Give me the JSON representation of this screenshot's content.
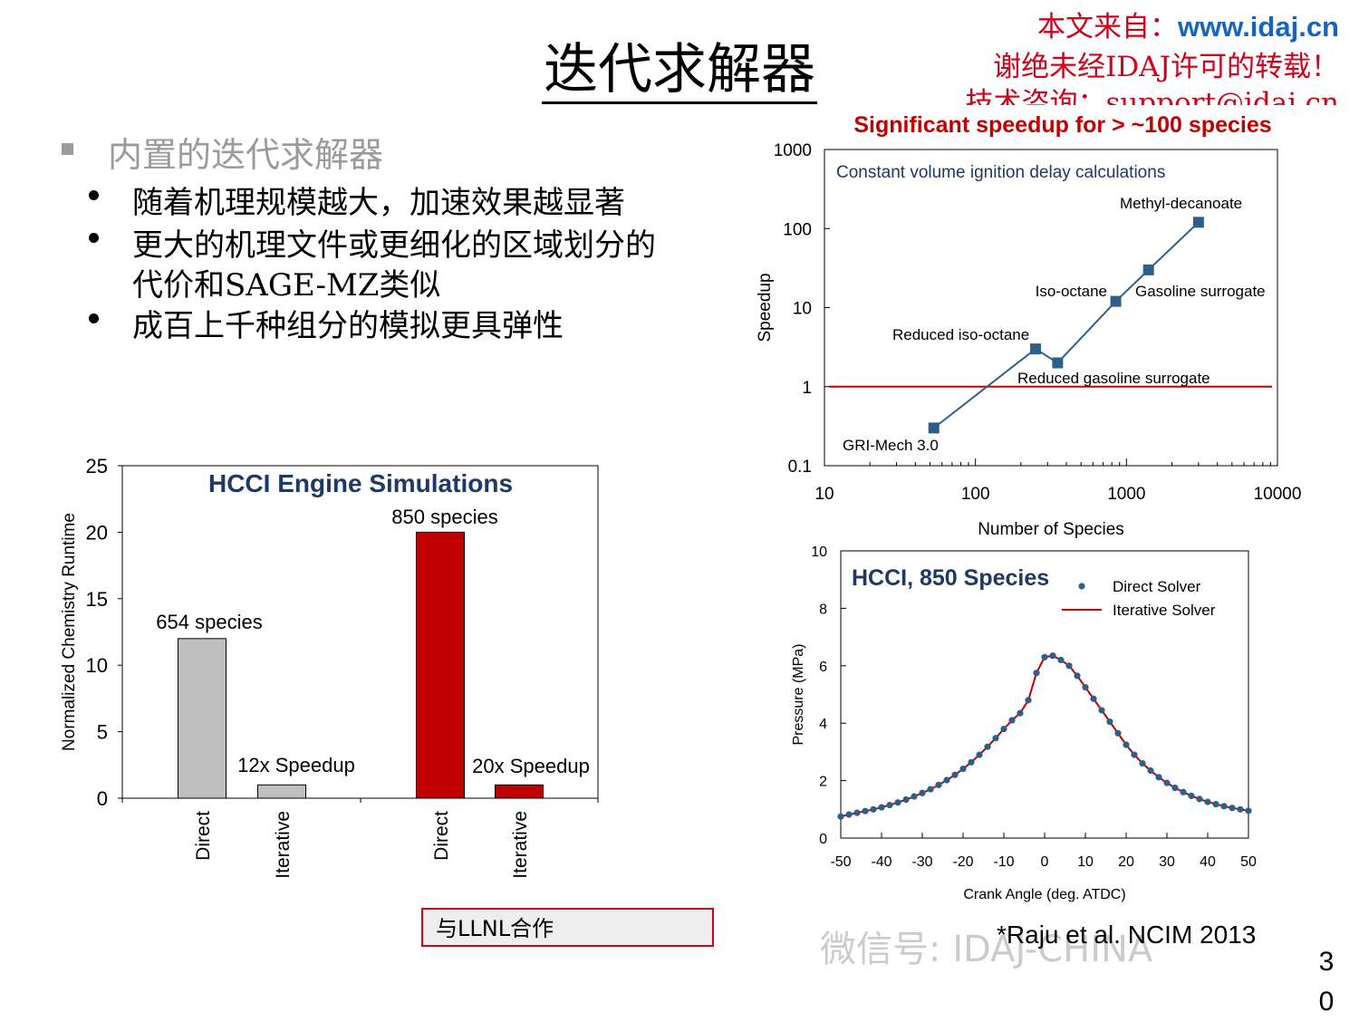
{
  "slide": {
    "title": "迭代求解器",
    "watermark": {
      "line1_cn": "本文来自：",
      "line1_url": "www.idaj.cn",
      "line2": "谢绝未经IDAJ许可的转载！",
      "line3": "技术咨询：support@idaj.cn"
    },
    "heading": "内置的迭代求解器",
    "bullets": [
      "随着机理规模越大，加速效果越显著",
      "更大的机理文件或更细化的区域划分的",
      "代价和SAGE-MZ类似",
      "成百上千种组分的模拟更具弹性"
    ],
    "llnl_box": "与LLNL合作",
    "reference": "*Raju et al. NCIM 2013",
    "wechat": "微信号: IDAJ-CHINA",
    "page_number": [
      "3",
      "0"
    ],
    "colors": {
      "red": "#c00000",
      "navy": "#1f3864",
      "gray": "#bfbfbf",
      "blue": "#2e5f8a",
      "watermark_red": "#d0021b",
      "watermark_blue": "#1565c0"
    }
  },
  "chart_data": [
    {
      "type": "bar",
      "title": "HCCI Engine Simulations",
      "ylabel": "Normalized Chemistry Runtime",
      "ylim": [
        0,
        25
      ],
      "yticks": [
        "0",
        "5",
        "10",
        "15",
        "20",
        "25"
      ],
      "categories": [
        "Direct",
        "Iterative",
        "Direct",
        "Iterative"
      ],
      "values": [
        12,
        1,
        20,
        1
      ],
      "bar_colors": [
        "#bfbfbf",
        "#bfbfbf",
        "#c00000",
        "#c00000"
      ],
      "annotations": [
        "654 species",
        "12x Speedup",
        "850 species",
        "20x Speedup"
      ]
    },
    {
      "type": "scatter",
      "title": "Significant speedup for > ~100 species",
      "subtitle": "Constant volume ignition delay calculations",
      "xlabel": "Number of Species",
      "ylabel": "Speedup",
      "xscale": "log",
      "yscale": "log",
      "xlim": [
        10,
        10000
      ],
      "ylim": [
        0.1,
        1000
      ],
      "xticks": [
        "10",
        "100",
        "1000",
        "10000"
      ],
      "yticks": [
        "0.1",
        "1",
        "10",
        "100",
        "1000"
      ],
      "points": [
        {
          "label": "GRI-Mech 3.0",
          "x": 53,
          "y": 0.3
        },
        {
          "label": "Reduced iso-octane",
          "x": 250,
          "y": 3
        },
        {
          "label": "Reduced gasoline surrogate",
          "x": 350,
          "y": 2
        },
        {
          "label": "Iso-octane",
          "x": 850,
          "y": 12
        },
        {
          "label": "Gasoline surrogate",
          "x": 1400,
          "y": 30
        },
        {
          "label": "Methyl-decanoate",
          "x": 3000,
          "y": 120
        }
      ],
      "reference_line": 1
    },
    {
      "type": "line",
      "title": "HCCI, 850 Species",
      "xlabel": "Crank Angle (deg. ATDC)",
      "ylabel": "Pressure (MPa)",
      "xlim": [
        -50,
        50
      ],
      "ylim": [
        0,
        10
      ],
      "xticks": [
        "-50",
        "-40",
        "-30",
        "-20",
        "-10",
        "0",
        "10",
        "20",
        "30",
        "40",
        "50"
      ],
      "yticks": [
        "0",
        "2",
        "4",
        "6",
        "8",
        "10"
      ],
      "series": [
        {
          "name": "Direct Solver",
          "style": "markers"
        },
        {
          "name": "Iterative Solver",
          "style": "line"
        }
      ],
      "x": [
        -50,
        -48,
        -46,
        -44,
        -42,
        -40,
        -38,
        -36,
        -34,
        -32,
        -30,
        -28,
        -26,
        -24,
        -22,
        -20,
        -18,
        -16,
        -14,
        -12,
        -10,
        -8,
        -6,
        -4,
        -2,
        0,
        2,
        4,
        6,
        8,
        10,
        12,
        14,
        16,
        18,
        20,
        22,
        24,
        26,
        28,
        30,
        32,
        34,
        36,
        38,
        40,
        42,
        44,
        46,
        48,
        50
      ],
      "y": [
        0.75,
        0.82,
        0.88,
        0.94,
        1.0,
        1.07,
        1.15,
        1.24,
        1.34,
        1.45,
        1.57,
        1.7,
        1.85,
        2.02,
        2.2,
        2.41,
        2.64,
        2.9,
        3.18,
        3.48,
        3.8,
        4.1,
        4.35,
        4.8,
        5.75,
        6.3,
        6.35,
        6.2,
        6.0,
        5.65,
        5.25,
        4.85,
        4.45,
        4.05,
        3.65,
        3.25,
        2.9,
        2.6,
        2.35,
        2.12,
        1.92,
        1.75,
        1.6,
        1.47,
        1.36,
        1.26,
        1.18,
        1.11,
        1.05,
        1.0,
        0.95
      ]
    }
  ]
}
